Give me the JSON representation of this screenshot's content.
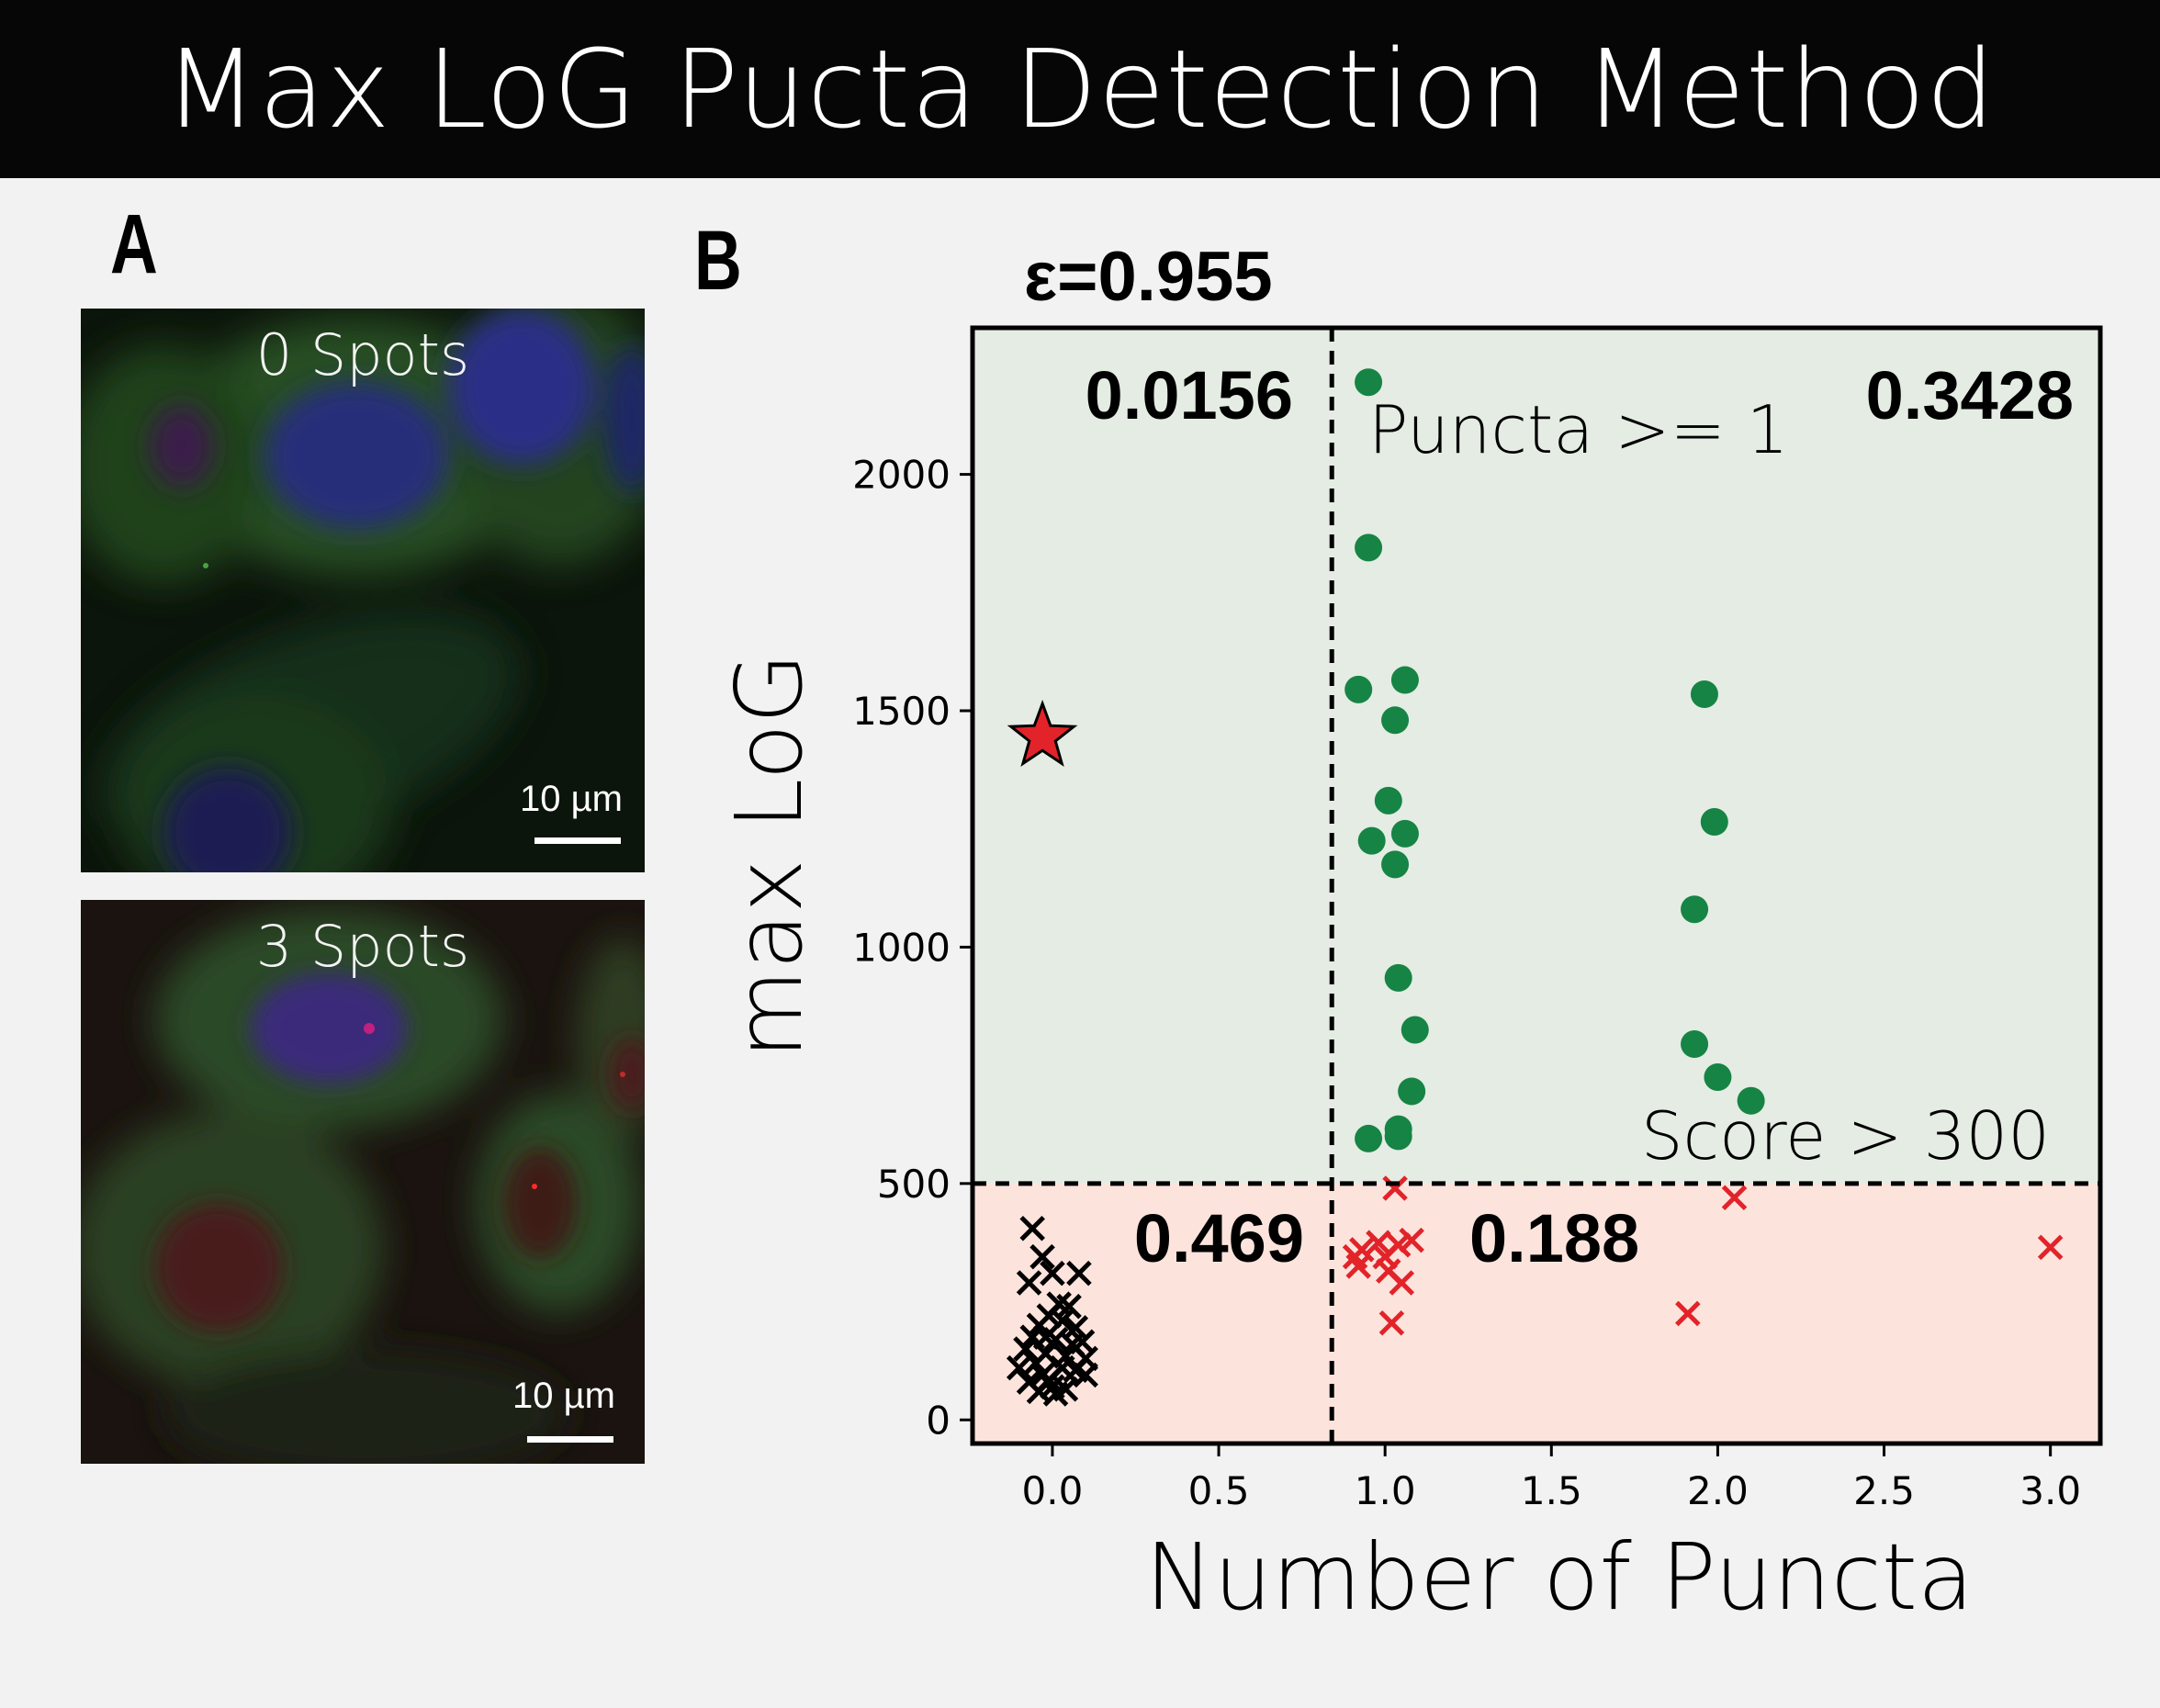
{
  "banner": {
    "title": "Max LoG Pucta Detection Method"
  },
  "panels": {
    "a": {
      "letter": "A",
      "images": [
        {
          "label": "0 Spots",
          "scale_bar": "10 µm"
        },
        {
          "label": "3 Spots",
          "scale_bar": "10 µm"
        }
      ]
    },
    "b": {
      "letter": "B"
    }
  },
  "chart_data": {
    "type": "scatter",
    "title": "ε=0.955",
    "xlabel": "Number of Puncta",
    "ylabel": "max LoG",
    "xlim": [
      -0.24,
      3.15
    ],
    "ylim": [
      -50,
      2310
    ],
    "xticks": [
      "0.0",
      "0.5",
      "1.0",
      "1.5",
      "2.0",
      "2.5",
      "3.0"
    ],
    "yticks": [
      "0",
      "500",
      "1000",
      "1500",
      "2000"
    ],
    "thresholds": {
      "puncta": {
        "value": 0.84,
        "label": "Puncta >= 1"
      },
      "score": {
        "value": 500,
        "label": "Score > 300"
      }
    },
    "quadrant_values": {
      "top_left": "0.0156",
      "top_right": "0.3428",
      "bottom_left": "0.469",
      "bottom_right": "0.188"
    },
    "colors": {
      "region_top": "#e4ece3",
      "region_bottom": "#fce4dc",
      "green": "#168444",
      "red": "#e2232a",
      "black": "#000000"
    },
    "series": [
      {
        "marker": "circle",
        "color": "#168444",
        "points": [
          [
            0.95,
            2195
          ],
          [
            0.95,
            1845
          ],
          [
            0.92,
            1545
          ],
          [
            1.06,
            1565
          ],
          [
            1.03,
            1480
          ],
          [
            1.01,
            1310
          ],
          [
            0.96,
            1225
          ],
          [
            1.06,
            1240
          ],
          [
            1.03,
            1175
          ],
          [
            1.04,
            935
          ],
          [
            1.09,
            825
          ],
          [
            1.08,
            695
          ],
          [
            0.95,
            595
          ],
          [
            1.04,
            600
          ],
          [
            1.04,
            615
          ],
          [
            1.96,
            1535
          ],
          [
            1.99,
            1265
          ],
          [
            1.93,
            1080
          ],
          [
            1.93,
            795
          ],
          [
            2.0,
            725
          ],
          [
            2.1,
            675
          ]
        ]
      },
      {
        "marker": "x",
        "color": "#e2232a",
        "points": [
          [
            1.03,
            490
          ],
          [
            0.91,
            345
          ],
          [
            0.93,
            360
          ],
          [
            0.92,
            325
          ],
          [
            0.98,
            375
          ],
          [
            1.0,
            345
          ],
          [
            1.04,
            370
          ],
          [
            1.08,
            380
          ],
          [
            1.01,
            315
          ],
          [
            1.05,
            290
          ],
          [
            1.02,
            205
          ],
          [
            2.05,
            470
          ],
          [
            1.91,
            225
          ],
          [
            3.0,
            365
          ]
        ]
      },
      {
        "marker": "x",
        "color": "#000000",
        "points": [
          [
            -0.06,
            405
          ],
          [
            -0.03,
            345
          ],
          [
            0.0,
            310
          ],
          [
            0.08,
            310
          ],
          [
            -0.07,
            290
          ],
          [
            0.02,
            245
          ],
          [
            0.05,
            240
          ],
          [
            -0.01,
            220
          ],
          [
            0.03,
            210
          ],
          [
            -0.04,
            200
          ],
          [
            0.07,
            195
          ],
          [
            -0.06,
            175
          ],
          [
            0.01,
            170
          ],
          [
            0.09,
            165
          ],
          [
            -0.08,
            150
          ],
          [
            -0.02,
            140
          ],
          [
            0.04,
            135
          ],
          [
            0.1,
            130
          ],
          [
            -0.05,
            120
          ],
          [
            0.03,
            110
          ],
          [
            -0.1,
            110
          ],
          [
            0.07,
            105
          ],
          [
            -0.03,
            95
          ],
          [
            0.1,
            95
          ],
          [
            -0.07,
            80
          ],
          [
            0.0,
            70
          ],
          [
            0.04,
            65
          ],
          [
            -0.04,
            60
          ],
          [
            0.01,
            55
          ],
          [
            -0.02,
            175
          ],
          [
            0.06,
            160
          ],
          [
            -0.01,
            85
          ]
        ]
      },
      {
        "marker": "star",
        "color": "#e2232a",
        "points": [
          [
            -0.03,
            1445
          ]
        ]
      }
    ]
  }
}
